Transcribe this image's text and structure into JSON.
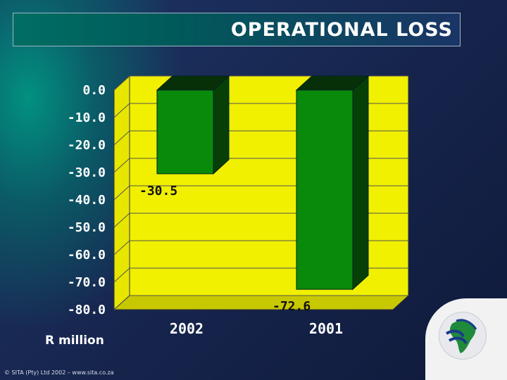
{
  "title": "OPERATIONAL LOSS",
  "footer": "© SITA (Pty) Ltd 2002 – www.sita.co.za",
  "logo": {
    "icon": "sita-logo-icon"
  },
  "colors": {
    "plot_back": "#f0f000",
    "plot_floor": "#c8c800",
    "bar_front": "#0a8a0a",
    "bar_top": "#083008",
    "bar_side": "#064006",
    "gridline": "#555555",
    "title_bar": "#006e62"
  },
  "chart_data": {
    "type": "bar",
    "categories": [
      "2002",
      "2001"
    ],
    "values": [
      -30.5,
      -72.6
    ],
    "data_labels": [
      "-30.5",
      "-72.6"
    ],
    "title": "OPERATIONAL LOSS",
    "xlabel": "",
    "ylabel": "R million",
    "ylim": [
      -80,
      0
    ],
    "yticks": [
      "0.0",
      "-10.0",
      "-20.0",
      "-30.0",
      "-40.0",
      "-50.0",
      "-60.0",
      "-70.0",
      "-80.0"
    ],
    "grid": true,
    "legend": "none"
  }
}
